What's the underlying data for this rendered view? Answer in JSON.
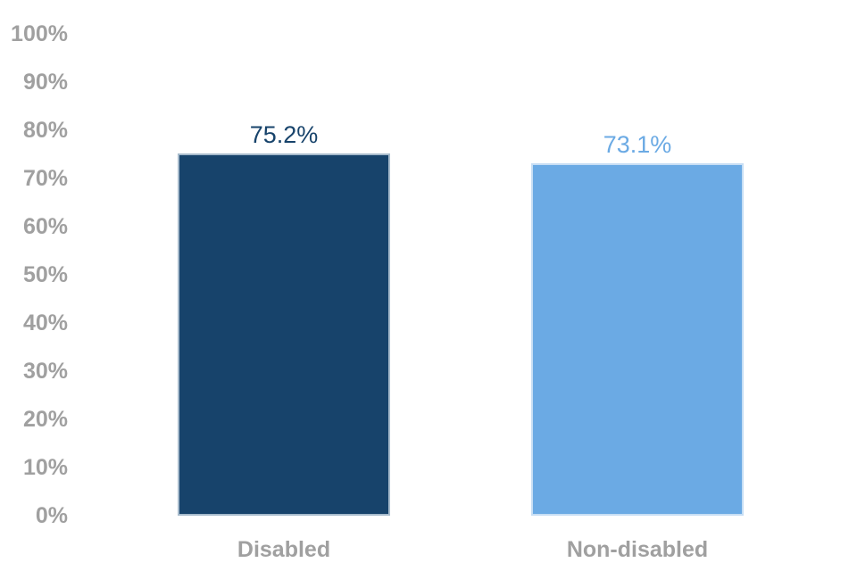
{
  "chart_data": {
    "type": "bar",
    "title": "",
    "categories": [
      "Disabled",
      "Non-disabled"
    ],
    "values": [
      75.2,
      73.1
    ],
    "value_labels": [
      "75.2%",
      "73.1%"
    ],
    "bar_colors": [
      "#17436B",
      "#6BAAE4"
    ],
    "bar_border_colors": [
      "#A7BBCC",
      "#C7DEF4"
    ],
    "value_label_colors": [
      "#17436B",
      "#6BAAE4"
    ],
    "yticks": [
      "100%",
      "90%",
      "80%",
      "70%",
      "60%",
      "50%",
      "40%",
      "30%",
      "20%",
      "10%",
      "0%"
    ],
    "ylim": [
      0,
      100
    ],
    "xlabel": "",
    "ylabel": "",
    "axis_text_color": "#A0A0A0",
    "grid": false,
    "legend_position": "none",
    "background_color": "#FFFFFF"
  }
}
